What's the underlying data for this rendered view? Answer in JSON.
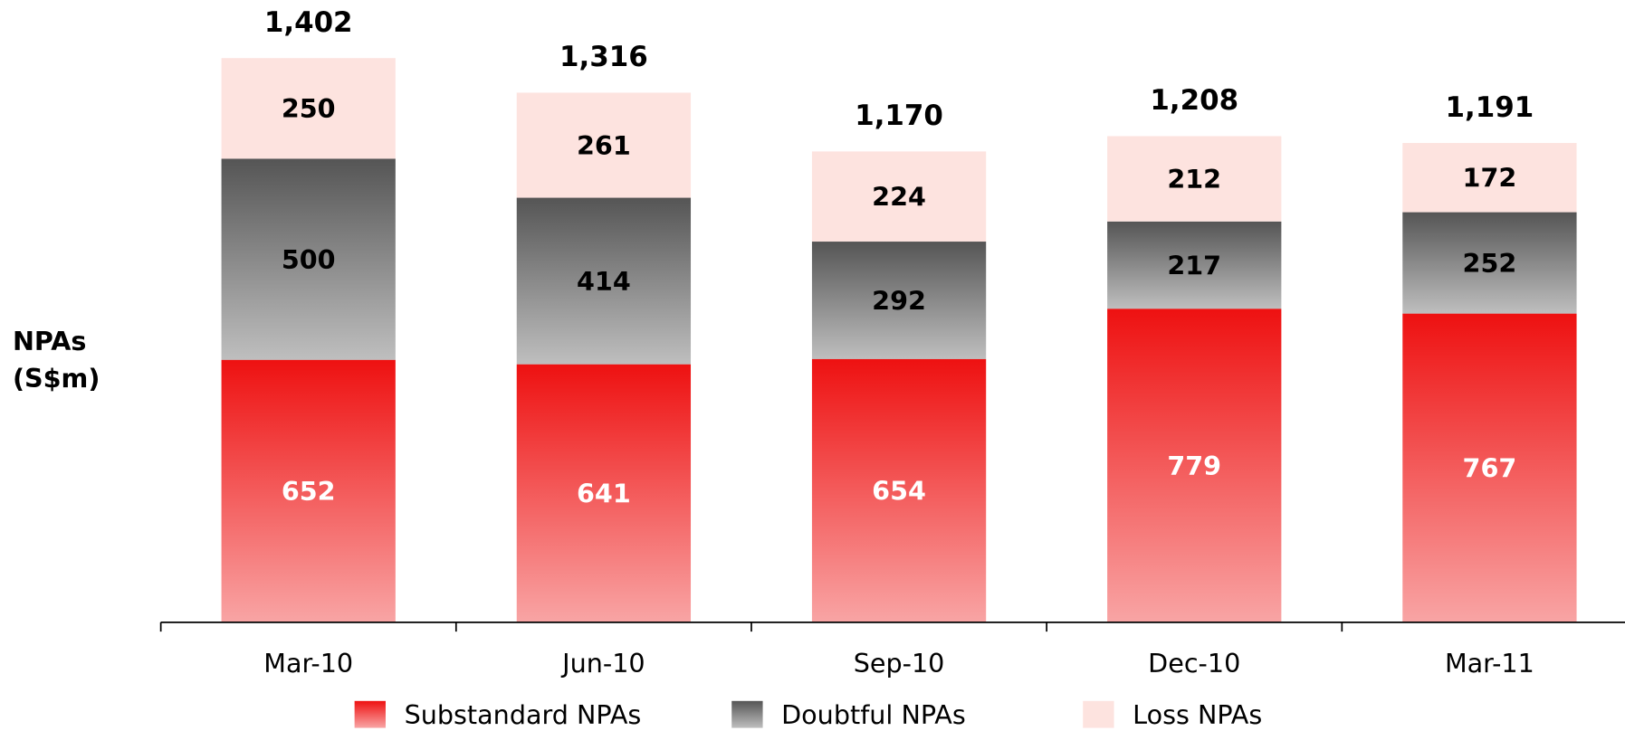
{
  "chart_data": {
    "type": "stacked_bar",
    "y_label": [
      "NPAs",
      "(S$m)"
    ],
    "categories": [
      "Mar-10",
      "Jun-10",
      "Sep-10",
      "Dec-10",
      "Mar-11"
    ],
    "series": [
      {
        "name": "Substandard NPAs",
        "color": "#ee1111",
        "values": [
          652,
          641,
          654,
          779,
          767
        ]
      },
      {
        "name": "Doubtful NPAs",
        "color": "#555555",
        "values": [
          500,
          414,
          292,
          217,
          252
        ]
      },
      {
        "name": "Loss NPAs",
        "color": "#fde3df",
        "values": [
          250,
          261,
          224,
          212,
          172
        ]
      }
    ],
    "totals": [
      1402,
      1316,
      1170,
      1208,
      1191
    ],
    "total_labels": [
      "1,402",
      "1,316",
      "1,170",
      "1,208",
      "1,191"
    ],
    "ylim": [
      0,
      1500
    ]
  }
}
